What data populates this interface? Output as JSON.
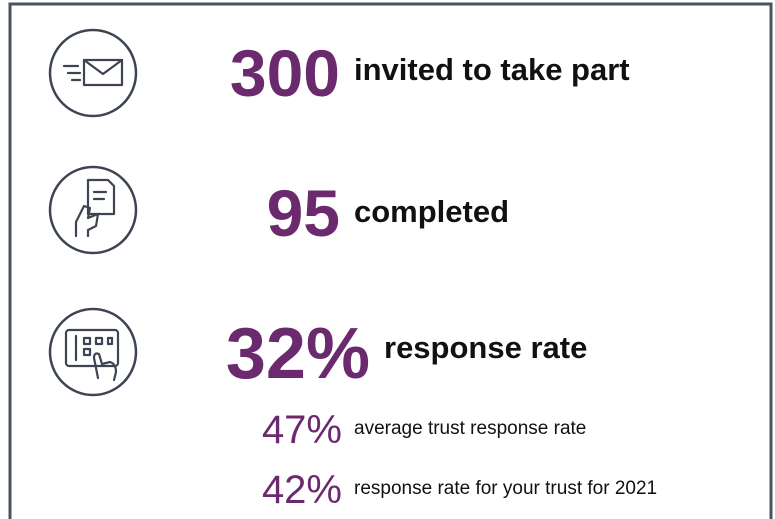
{
  "items": [
    {
      "value": "300",
      "label": "invited to take part"
    },
    {
      "value": "95",
      "label": "completed"
    },
    {
      "value": "32%",
      "label": "response rate"
    }
  ],
  "comparisons": [
    {
      "value": "47%",
      "label": "average trust response rate"
    },
    {
      "value": "42%",
      "label": "response rate for your trust for 2021"
    }
  ]
}
